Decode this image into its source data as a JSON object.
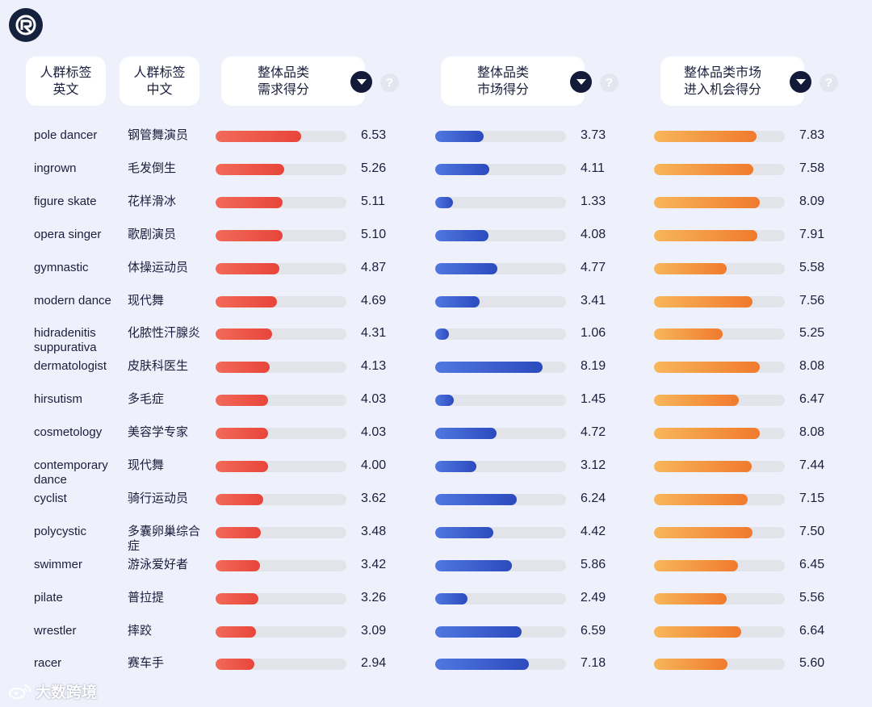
{
  "header": {
    "col_en": "人群标签\n英文",
    "col_zh": "人群标签\n中文",
    "col_demand": "整体品类\n需求得分",
    "col_market": "整体品类\n市场得分",
    "col_opportunity": "整体品类市场\n进入机会得分",
    "help_symbol": "?"
  },
  "colors": {
    "demand": "#e8453a",
    "market": "#2c4bbe",
    "opportunity": "#f07a2e",
    "track": "#e3e4ea",
    "background": "#eef0fb"
  },
  "icons": {
    "logo": "brand-logo-icon",
    "sort": "caret-down-icon",
    "help": "question-mark-icon",
    "watermark": "weibo-icon"
  },
  "watermark": "大数跨境",
  "chart_data": {
    "type": "table",
    "columns": [
      "人群标签英文",
      "人群标签中文",
      "整体品类需求得分",
      "整体品类市场得分",
      "整体品类市场进入机会得分"
    ],
    "score_range": [
      0,
      10
    ],
    "rows": [
      {
        "en": "pole dancer",
        "zh": "钢管舞演员",
        "demand": 6.53,
        "market": 3.73,
        "opportunity": 7.83
      },
      {
        "en": "ingrown",
        "zh": "毛发倒生",
        "demand": 5.26,
        "market": 4.11,
        "opportunity": 7.58
      },
      {
        "en": "figure skate",
        "zh": "花样滑冰",
        "demand": 5.11,
        "market": 1.33,
        "opportunity": 8.09
      },
      {
        "en": "opera singer",
        "zh": "歌剧演员",
        "demand": 5.1,
        "market": 4.08,
        "opportunity": 7.91
      },
      {
        "en": "gymnastic",
        "zh": "体操运动员",
        "demand": 4.87,
        "market": 4.77,
        "opportunity": 5.58
      },
      {
        "en": "modern dance",
        "zh": "现代舞",
        "demand": 4.69,
        "market": 3.41,
        "opportunity": 7.56
      },
      {
        "en": "hidradenitis suppurativa",
        "zh": "化脓性汗腺炎",
        "demand": 4.31,
        "market": 1.06,
        "opportunity": 5.25
      },
      {
        "en": "dermatologist",
        "zh": "皮肤科医生",
        "demand": 4.13,
        "market": 8.19,
        "opportunity": 8.08
      },
      {
        "en": "hirsutism",
        "zh": "多毛症",
        "demand": 4.03,
        "market": 1.45,
        "opportunity": 6.47
      },
      {
        "en": "cosmetology",
        "zh": "美容学专家",
        "demand": 4.03,
        "market": 4.72,
        "opportunity": 8.08
      },
      {
        "en": "contemporary dance",
        "zh": "现代舞",
        "demand": 4.0,
        "market": 3.12,
        "opportunity": 7.44
      },
      {
        "en": "cyclist",
        "zh": "骑行运动员",
        "demand": 3.62,
        "market": 6.24,
        "opportunity": 7.15
      },
      {
        "en": "polycystic",
        "zh": "多囊卵巢综合症",
        "demand": 3.48,
        "market": 4.42,
        "opportunity": 7.5
      },
      {
        "en": "swimmer",
        "zh": "游泳爱好者",
        "demand": 3.42,
        "market": 5.86,
        "opportunity": 6.45
      },
      {
        "en": "pilate",
        "zh": "普拉提",
        "demand": 3.26,
        "market": 2.49,
        "opportunity": 5.56
      },
      {
        "en": "wrestler",
        "zh": "摔跤",
        "demand": 3.09,
        "market": 6.59,
        "opportunity": 6.64
      },
      {
        "en": "racer",
        "zh": "赛车手",
        "demand": 2.94,
        "market": 7.18,
        "opportunity": 5.6
      }
    ]
  }
}
